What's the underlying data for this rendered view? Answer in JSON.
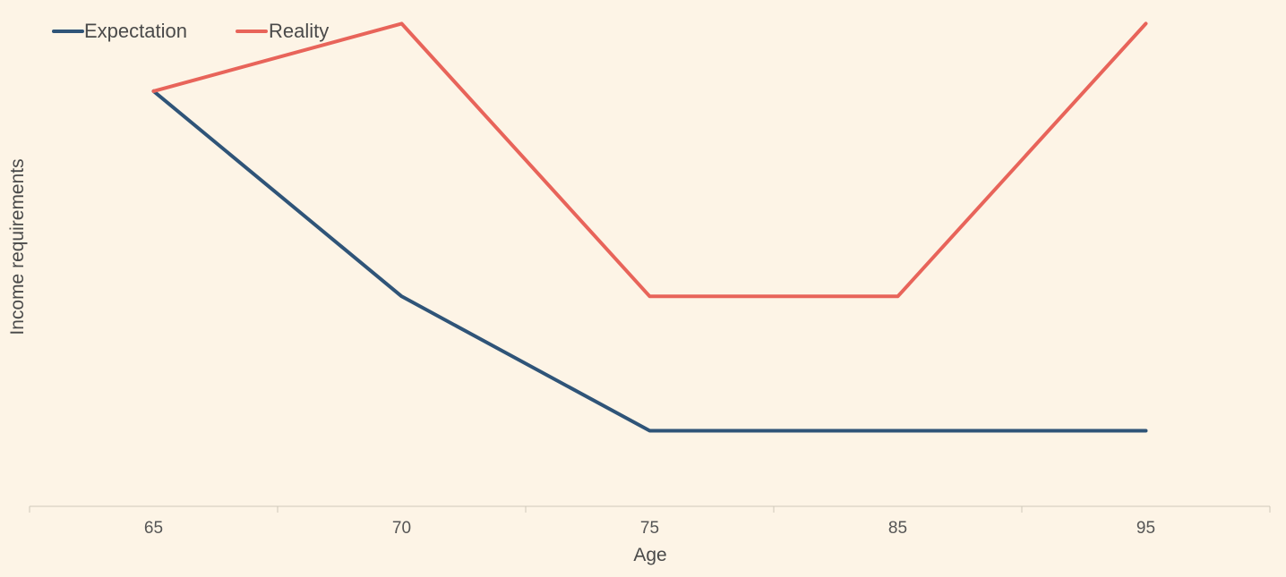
{
  "chart_data": {
    "type": "line",
    "categories": [
      "65",
      "70",
      "75",
      "85",
      "95"
    ],
    "series": [
      {
        "name": "Expectation",
        "color": "#2f5478",
        "values": [
          61.5,
          31.1,
          11.2,
          11.2,
          11.2
        ]
      },
      {
        "name": "Reality",
        "color": "#e8645a",
        "values": [
          61.5,
          71.5,
          31.1,
          31.1,
          71.5
        ]
      }
    ],
    "xlabel": "Age",
    "ylabel": "Income requirements",
    "ylim": [
      0,
      75
    ],
    "grid": false,
    "legend": "top-left"
  }
}
